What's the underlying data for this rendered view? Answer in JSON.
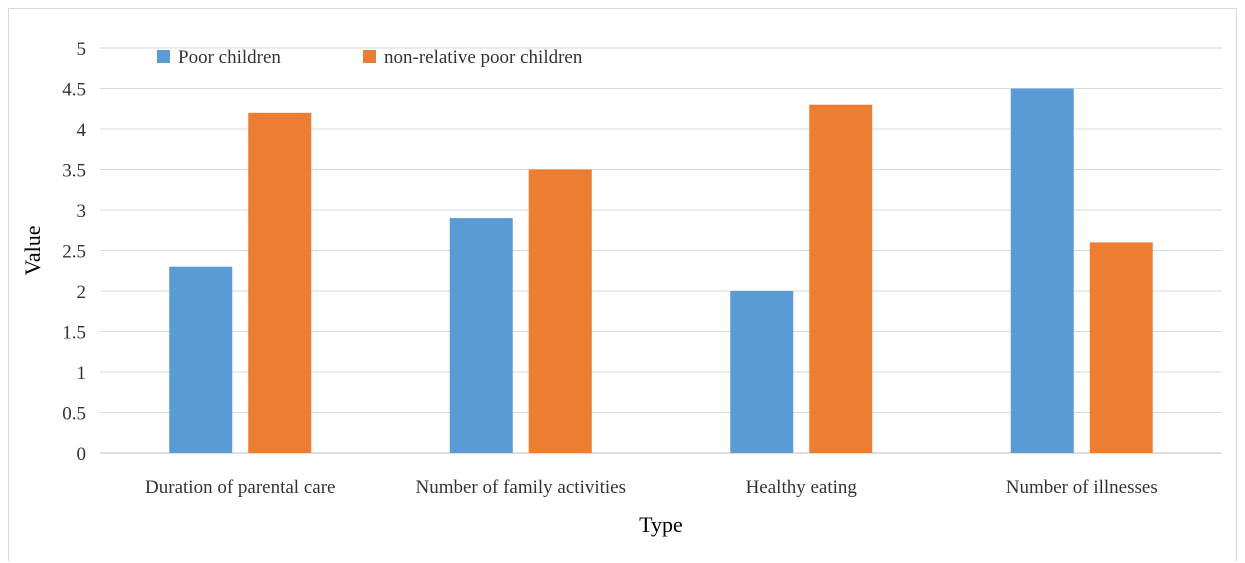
{
  "chart_data": {
    "type": "bar",
    "categories": [
      "Duration of parental care",
      "Number of family activities",
      "Healthy eating",
      "Number of illnesses"
    ],
    "series": [
      {
        "name": "Poor children",
        "values": [
          2.3,
          2.9,
          2.0,
          4.5
        ],
        "color": "#5b9bd5"
      },
      {
        "name": "non-relative poor children",
        "values": [
          4.2,
          3.5,
          4.3,
          2.6
        ],
        "color": "#ed7d31"
      }
    ],
    "xlabel": "Type",
    "ylabel": "Value",
    "ylim": [
      0,
      5
    ],
    "yticks": [
      "0",
      "0.5",
      "1",
      "1.5",
      "2",
      "2.5",
      "3",
      "3.5",
      "4",
      "4.5",
      "5"
    ],
    "grid": true,
    "legend_position": "top-left"
  }
}
